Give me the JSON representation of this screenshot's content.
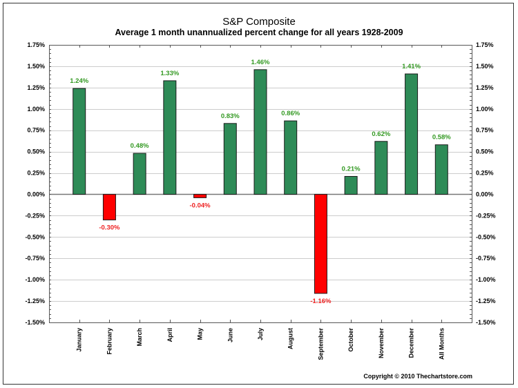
{
  "chart_data": {
    "type": "bar",
    "title": "S&P Composite",
    "subtitle": "Average 1 month unannualized percent change for all years 1928-2009",
    "xlabel": "",
    "ylabel": "",
    "categories": [
      "January",
      "February",
      "March",
      "April",
      "May",
      "June",
      "July",
      "August",
      "September",
      "October",
      "November",
      "December",
      "All Months"
    ],
    "values": [
      1.24,
      -0.3,
      0.48,
      1.33,
      -0.04,
      0.83,
      1.46,
      0.86,
      -1.16,
      0.21,
      0.62,
      1.41,
      0.58
    ],
    "data_labels": [
      "1.24%",
      "-0.30%",
      "0.48%",
      "1.33%",
      "-0.04%",
      "0.83%",
      "1.46%",
      "0.86%",
      "-1.16%",
      "0.21%",
      "0.62%",
      "1.41%",
      "0.58%"
    ],
    "ylim": [
      -1.5,
      1.75
    ],
    "yticks": [
      1.75,
      1.5,
      1.25,
      1.0,
      0.75,
      0.5,
      0.25,
      0.0,
      -0.25,
      -0.5,
      -0.75,
      -1.0,
      -1.25,
      -1.5
    ],
    "ytick_labels": [
      "1.75%",
      "1.50%",
      "1.25%",
      "1.00%",
      "0.75%",
      "0.50%",
      "0.25%",
      "0.00%",
      "-0.25%",
      "-0.50%",
      "-0.75%",
      "-1.00%",
      "-1.25%",
      "-1.50%"
    ],
    "y_axis_sides": [
      "left",
      "right"
    ],
    "grid": true,
    "legend": "none",
    "colors": {
      "positive_bar": "#2e8b57",
      "negative_bar": "#ff0000",
      "positive_label": "#339922",
      "negative_label": "#ee2222",
      "grid": "#cccccc"
    }
  },
  "footer": {
    "copyright": "Copyright © 2010 Thechartstore.com"
  }
}
